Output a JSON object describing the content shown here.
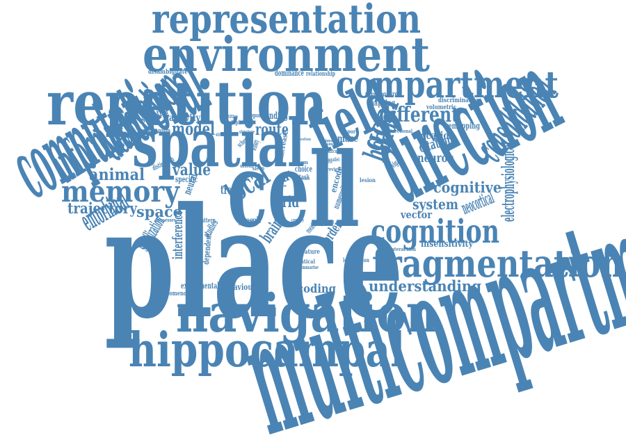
{
  "colors": {
    "word": "#4a84b4",
    "background": "#ffffff"
  },
  "words": [
    "place",
    "cell",
    "spatial",
    "repetition",
    "direction",
    "navigation",
    "environment",
    "representation",
    "compartment",
    "fragmentation",
    "hippocampal",
    "multicompartment",
    "cognition",
    "field",
    "memory",
    "computational",
    "different",
    "goal",
    "head",
    "information",
    "model",
    "route",
    "animal",
    "value",
    "trajectory",
    "space",
    "grid",
    "local",
    "destination",
    "cognitive",
    "understanding",
    "system",
    "neuron",
    "location",
    "vector",
    "encoding",
    "consolidation",
    "citation",
    "electrophysiological",
    "insensitivity",
    "remapping",
    "neocortical",
    "entorhinal",
    "behavioural",
    "experimental",
    "interference",
    "brain",
    "rat",
    "trace",
    "maze",
    "activity",
    "finding",
    "mapping",
    "border",
    "discrimination",
    "preexposure",
    "volumetric",
    "dominance",
    "relationship",
    "disambiguate",
    "association",
    "mechanism",
    "distinguish",
    "specific",
    "neural",
    "result",
    "pattern",
    "studies",
    "dependent",
    "stabilization",
    "phenomenon",
    "literature",
    "identical",
    "summarise",
    "medial",
    "localization",
    "interaction",
    "encode",
    "numerosity",
    "choice",
    "sleep",
    "task",
    "global",
    "lesion",
    "navigate",
    "review",
    "increase",
    "support",
    "multiple",
    "repetitive",
    "processes",
    "flexible",
    "young",
    "gravity",
    "research",
    "century",
    "structure",
    "parallel",
    "difficult",
    "report",
    "directional",
    "signal",
    "respect",
    "form",
    "view",
    "scheme",
    "sensory",
    "unusual",
    "stroke",
    "similar",
    "neighborhood",
    "question"
  ]
}
